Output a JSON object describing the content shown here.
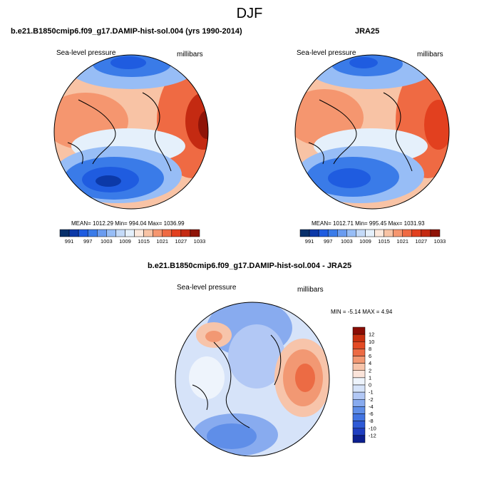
{
  "page": {
    "title": "DJF"
  },
  "colors": {
    "palette": [
      "#08306b",
      "#0c39a8",
      "#1f5ce0",
      "#3a7be8",
      "#6a9cf0",
      "#97bdf6",
      "#c4daf8",
      "#e5f0fb",
      "#fce8dc",
      "#f8c3a5",
      "#f5966f",
      "#ef6a43",
      "#e2401f",
      "#c42a12",
      "#8f1408"
    ],
    "diff_palette": [
      "#0c1f8f",
      "#1f3ec0",
      "#2e5ad6",
      "#4274e2",
      "#5f8ee8",
      "#88abef",
      "#b2c8f5",
      "#d6e3f9",
      "#eef4fc",
      "#fbe4da",
      "#f7c4aa",
      "#f29873",
      "#ec6b44",
      "#e34a24",
      "#c8300f",
      "#8a0d05"
    ],
    "ocean_land_outline": "#000000"
  },
  "charts": [
    {
      "type": "heatmap",
      "title": "b.e21.B1850cmip6.f09_g17.DAMIP-hist-sol.004 (yrs 1990-2014)",
      "left_label": "Sea-level pressure",
      "right_label": "millibars",
      "stats": "MEAN= 1012.29  Min= 994.04  Max= 1036.99",
      "colorbar": {
        "labels": [
          "991",
          "997",
          "1003",
          "1009",
          "1015",
          "1021",
          "1027",
          "1033"
        ]
      }
    },
    {
      "type": "heatmap",
      "title": "JRA25",
      "left_label": "Sea-level pressure",
      "right_label": "millibars",
      "stats": "MEAN= 1012.71  Min= 995.45  Max= 1031.93",
      "colorbar": {
        "labels": [
          "991",
          "997",
          "1003",
          "1009",
          "1015",
          "1021",
          "1027",
          "1033"
        ]
      }
    },
    {
      "type": "heatmap",
      "title": "b.e21.B1850cmip6.f09_g17.DAMIP-hist-sol.004 - JRA25",
      "left_label": "Sea-level pressure",
      "right_label": "millibars",
      "stats": "MIN =  -5.14 MAX =   4.94",
      "colorbar": {
        "labels": [
          "12",
          "10",
          "8",
          "6",
          "4",
          "2",
          "1",
          "0",
          "-1",
          "-2",
          "-4",
          "-6",
          "-8",
          "-10",
          "-12"
        ]
      }
    }
  ]
}
